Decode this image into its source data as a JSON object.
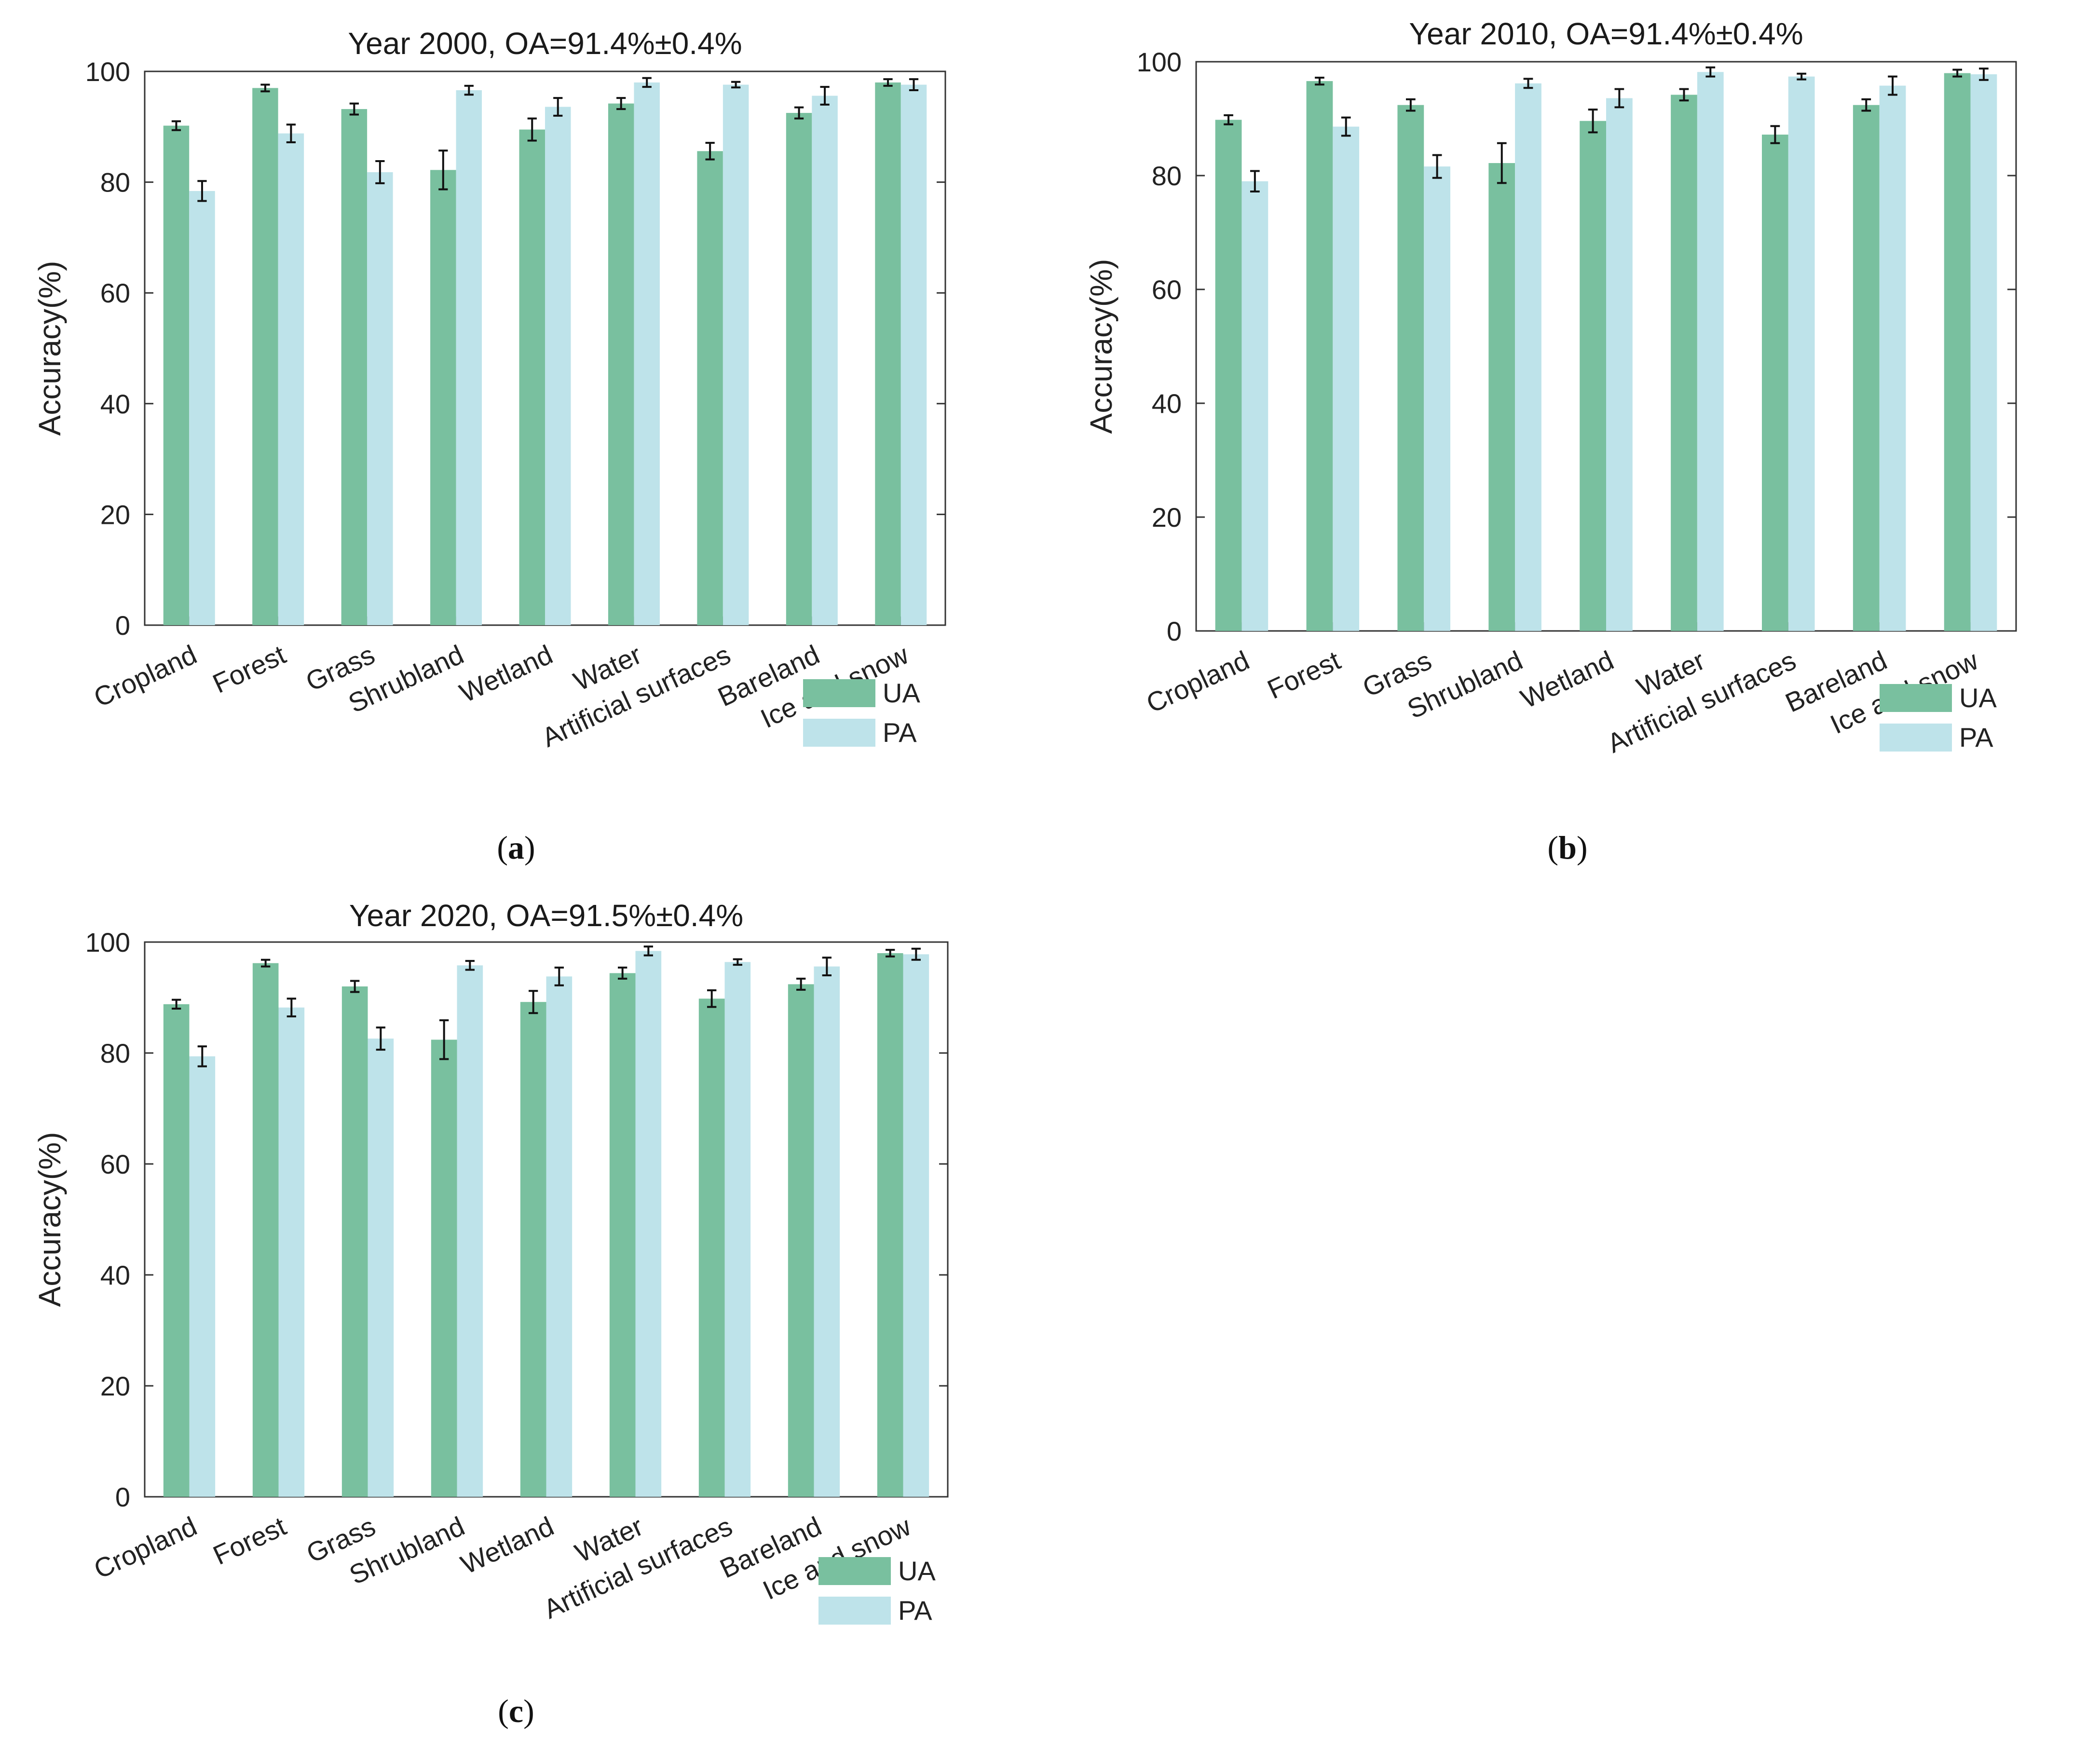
{
  "colors": {
    "ua": "#79c09f",
    "pa": "#bee3ea",
    "axis": "#333333",
    "errorbar": "#111111"
  },
  "chart_data": [
    {
      "type": "bar",
      "panel": "(a)",
      "title": "Year 2000, OA=91.4%±0.4%",
      "ylabel": "Accuracy(%)",
      "ylim": [
        0,
        100
      ],
      "yticks": [
        "0",
        "20",
        "40",
        "60",
        "80",
        "100"
      ],
      "categories": [
        "Cropland",
        "Forest",
        "Grass",
        "Shrubland",
        "Wetland",
        "Water",
        "Artificial surfaces",
        "Bareland",
        "Ice and snow"
      ],
      "series": [
        {
          "name": "UA",
          "values": [
            90.2,
            97.0,
            93.2,
            82.2,
            89.5,
            94.2,
            85.6,
            92.5,
            98.0
          ],
          "errors": [
            0.8,
            0.6,
            1.0,
            3.5,
            2.0,
            1.0,
            1.5,
            1.0,
            0.6
          ]
        },
        {
          "name": "PA",
          "values": [
            78.4,
            88.8,
            81.8,
            96.6,
            93.6,
            98.0,
            97.6,
            95.6,
            97.6
          ],
          "errors": [
            1.8,
            1.6,
            2.0,
            0.8,
            1.6,
            0.8,
            0.5,
            1.6,
            1.0
          ]
        }
      ],
      "legend_position": "bottom-right"
    },
    {
      "type": "bar",
      "panel": "(b)",
      "title": "Year 2010, OA=91.4%±0.4%",
      "ylabel": "Accuracy(%)",
      "ylim": [
        0,
        100
      ],
      "yticks": [
        "0",
        "20",
        "40",
        "60",
        "80",
        "100"
      ],
      "categories": [
        "Cropland",
        "Forest",
        "Grass",
        "Shrubland",
        "Wetland",
        "Water",
        "Artificial surfaces",
        "Bareland",
        "Ice and snow"
      ],
      "series": [
        {
          "name": "UA",
          "values": [
            89.8,
            96.6,
            92.4,
            82.2,
            89.6,
            94.2,
            87.2,
            92.4,
            98.0
          ],
          "errors": [
            0.8,
            0.6,
            1.0,
            3.5,
            2.0,
            1.0,
            1.5,
            1.0,
            0.6
          ]
        },
        {
          "name": "PA",
          "values": [
            79.0,
            88.6,
            81.6,
            96.2,
            93.6,
            98.2,
            97.4,
            95.8,
            97.8
          ],
          "errors": [
            1.8,
            1.6,
            2.0,
            0.8,
            1.6,
            0.8,
            0.5,
            1.6,
            1.0
          ]
        }
      ],
      "legend_position": "bottom-right"
    },
    {
      "type": "bar",
      "panel": "(c)",
      "title": "Year 2020, OA=91.5%±0.4%",
      "ylabel": "Accuracy(%)",
      "ylim": [
        0,
        100
      ],
      "yticks": [
        "0",
        "20",
        "40",
        "60",
        "80",
        "100"
      ],
      "categories": [
        "Cropland",
        "Forest",
        "Grass",
        "Shrubland",
        "Wetland",
        "Water",
        "Artificial surfaces",
        "Bareland",
        "Ice and snow"
      ],
      "series": [
        {
          "name": "UA",
          "values": [
            88.8,
            96.2,
            92.0,
            82.4,
            89.2,
            94.4,
            89.8,
            92.4,
            98.0
          ],
          "errors": [
            0.8,
            0.6,
            1.0,
            3.5,
            2.0,
            1.0,
            1.5,
            1.0,
            0.6
          ]
        },
        {
          "name": "PA",
          "values": [
            79.4,
            88.2,
            82.6,
            95.8,
            93.8,
            98.4,
            96.4,
            95.6,
            97.8
          ],
          "errors": [
            1.8,
            1.6,
            2.0,
            0.8,
            1.6,
            0.8,
            0.5,
            1.6,
            1.0
          ]
        }
      ],
      "legend_position": "bottom-right"
    }
  ]
}
